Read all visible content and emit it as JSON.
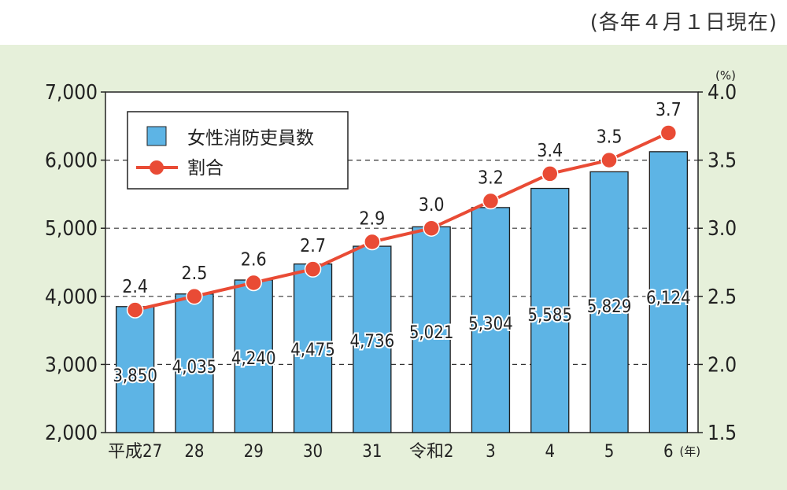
{
  "note": "(各年４月１日現在)",
  "chart_data": {
    "type": "bar+line",
    "categories": [
      "平成27",
      "28",
      "29",
      "30",
      "31",
      "令和2",
      "3",
      "4",
      "5",
      "6"
    ],
    "x_unit": "(年)",
    "series": [
      {
        "name": "女性消防吏員数",
        "type": "bar",
        "axis": "left",
        "color": "#5db4e5",
        "values": [
          3850,
          4035,
          4240,
          4475,
          4736,
          5021,
          5304,
          5585,
          5829,
          6124
        ],
        "labels": [
          "3,850",
          "4,035",
          "4,240",
          "4,475",
          "4,736",
          "5,021",
          "5,304",
          "5,585",
          "5,829",
          "6,124"
        ]
      },
      {
        "name": "割合",
        "type": "line",
        "axis": "right",
        "color": "#e94b35",
        "values": [
          2.4,
          2.5,
          2.6,
          2.7,
          2.9,
          3.0,
          3.2,
          3.4,
          3.5,
          3.7
        ],
        "labels": [
          "2.4",
          "2.5",
          "2.6",
          "2.7",
          "2.9",
          "3.0",
          "3.2",
          "3.4",
          "3.5",
          "3.7"
        ]
      }
    ],
    "y_left": {
      "ylim": [
        2000,
        7000
      ],
      "ticks": [
        "2,000",
        "3,000",
        "4,000",
        "5,000",
        "6,000",
        "7,000"
      ]
    },
    "y_right": {
      "ylim": [
        1.5,
        4.0
      ],
      "unit": "(%)",
      "ticks": [
        "1.5",
        "2.0",
        "2.5",
        "3.0",
        "3.5",
        "4.0"
      ]
    },
    "grid": "dashed horizontal",
    "legend": "top-left"
  }
}
